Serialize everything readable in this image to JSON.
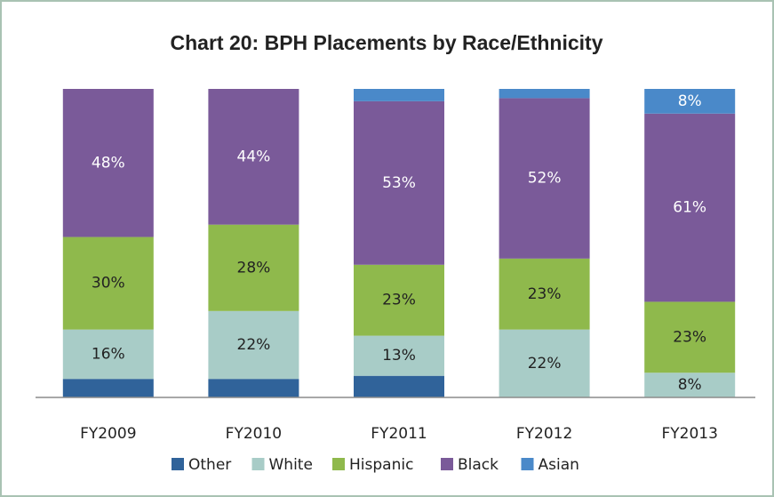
{
  "chart_data": {
    "type": "stacked_bar",
    "title": "Chart 20: BPH Placements by Race/Ethnicity",
    "categories": [
      "FY2009",
      "FY2010",
      "FY2011",
      "FY2012",
      "FY2013"
    ],
    "ylim": [
      0,
      100
    ],
    "legend": "bottom",
    "series": [
      {
        "name": "Other",
        "color": "#30639a",
        "values": [
          6,
          6,
          7,
          0,
          0
        ],
        "value_labels": [
          null,
          null,
          null,
          null,
          null
        ]
      },
      {
        "name": "White",
        "color": "#a8ccc7",
        "values": [
          16,
          22,
          13,
          22,
          8
        ],
        "value_labels": [
          "16%",
          "22%",
          "13%",
          "22%",
          "8%"
        ]
      },
      {
        "name": "Hispanic",
        "color": "#8fb94c",
        "values": [
          30,
          28,
          23,
          23,
          23
        ],
        "value_labels": [
          "30%",
          "28%",
          "23%",
          "23%",
          "23%"
        ]
      },
      {
        "name": "Black",
        "color": "#7a5a99",
        "values": [
          48,
          44,
          53,
          52,
          61
        ],
        "value_labels": [
          "48%",
          "44%",
          "53%",
          "52%",
          "61%"
        ]
      },
      {
        "name": "Asian",
        "color": "#4a89c9",
        "values": [
          0,
          0,
          4,
          3,
          8
        ],
        "value_labels": [
          null,
          null,
          null,
          null,
          "8%"
        ]
      }
    ]
  }
}
